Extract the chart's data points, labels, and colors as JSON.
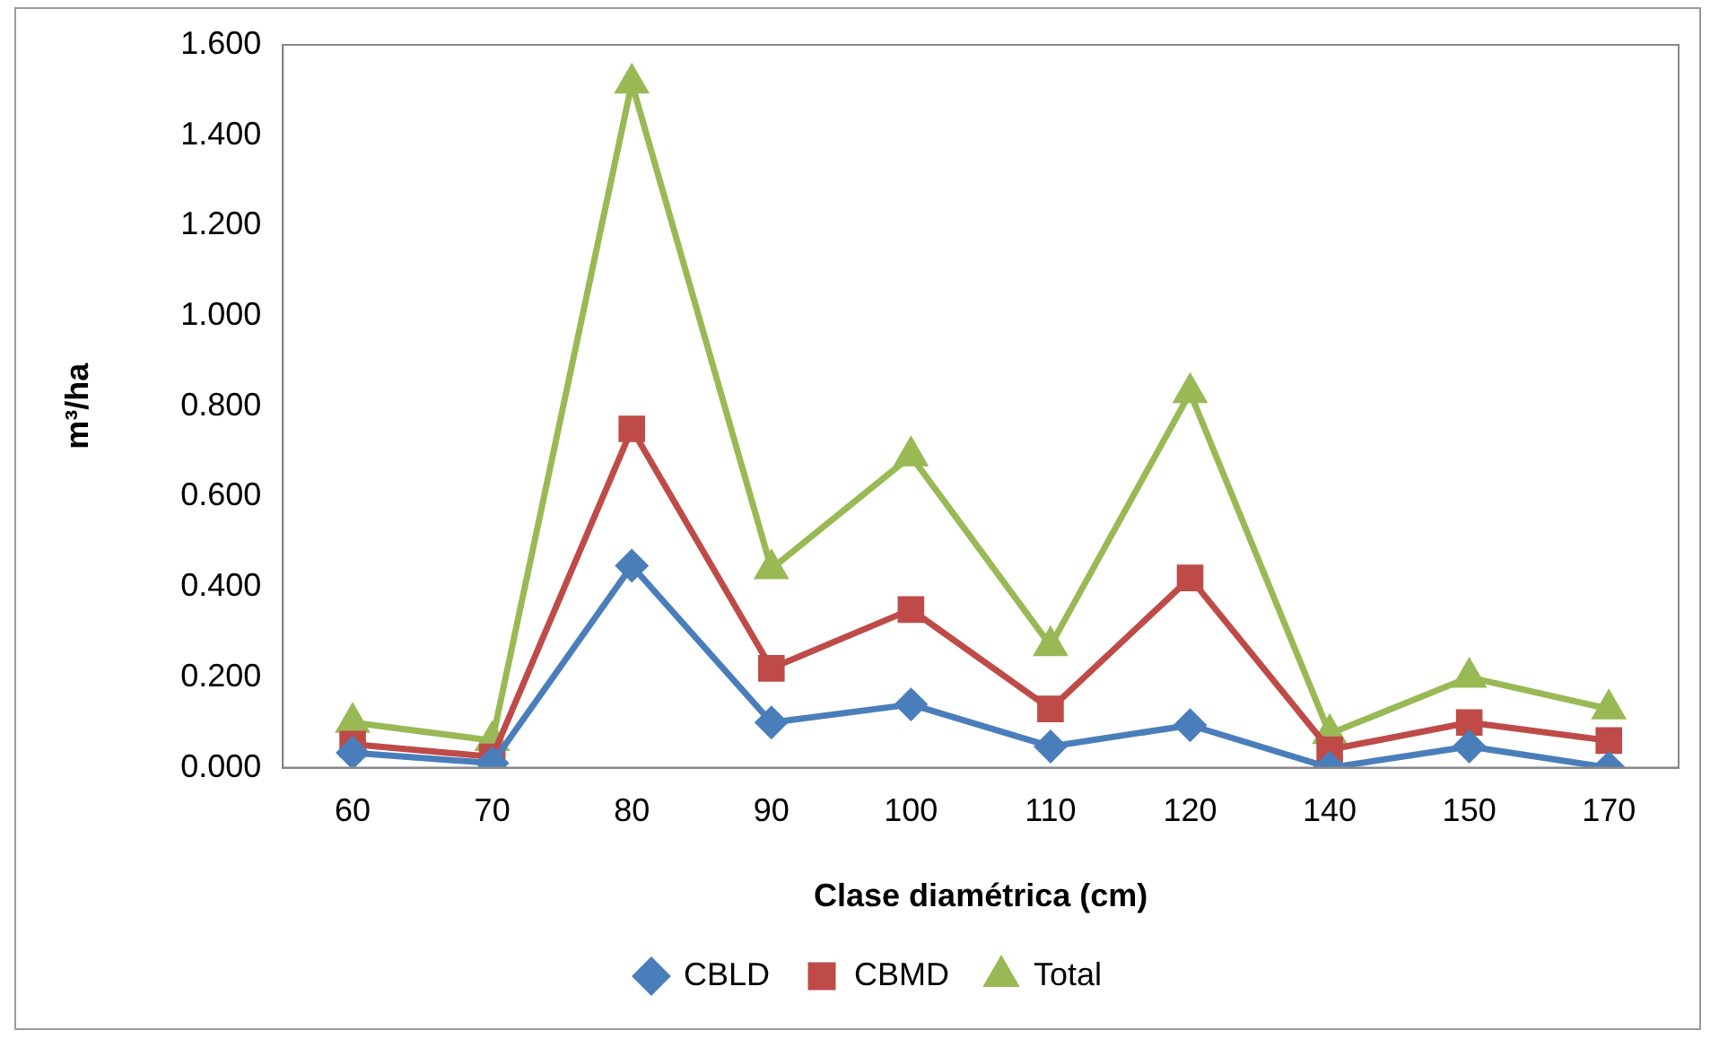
{
  "chart_data": {
    "type": "line",
    "xlabel": "Clase diamétrica (cm)",
    "ylabel": "m³/ha",
    "categories": [
      "60",
      "70",
      "80",
      "90",
      "100",
      "110",
      "120",
      "140",
      "150",
      "170"
    ],
    "series": [
      {
        "name": "CBLD",
        "color": "#4a7ebb",
        "marker": "diamond",
        "values": [
          0.033,
          0.01,
          0.447,
          0.1,
          0.14,
          0.047,
          0.094,
          0.0,
          0.047,
          0.0
        ]
      },
      {
        "name": "CBMD",
        "color": "#be4b48",
        "marker": "square",
        "values": [
          0.052,
          0.024,
          0.75,
          0.22,
          0.35,
          0.13,
          0.42,
          0.04,
          0.1,
          0.06
        ]
      },
      {
        "name": "Total",
        "color": "#98b954",
        "marker": "triangle",
        "values": [
          0.1,
          0.06,
          1.515,
          0.44,
          0.69,
          0.27,
          0.83,
          0.075,
          0.2,
          0.13
        ]
      }
    ],
    "ylim": [
      0,
      1.6
    ],
    "yticks": [
      {
        "value": 0,
        "label": "0.000"
      },
      {
        "value": 0.2,
        "label": "0.200"
      },
      {
        "value": 0.4,
        "label": "0.400"
      },
      {
        "value": 0.6,
        "label": "0.600"
      },
      {
        "value": 0.8,
        "label": "0.800"
      },
      {
        "value": 1.0,
        "label": "1.000"
      },
      {
        "value": 1.2,
        "label": "1.200"
      },
      {
        "value": 1.4,
        "label": "1.400"
      },
      {
        "value": 1.6,
        "label": "1.600"
      }
    ],
    "grid": false,
    "legend": "bottom"
  }
}
